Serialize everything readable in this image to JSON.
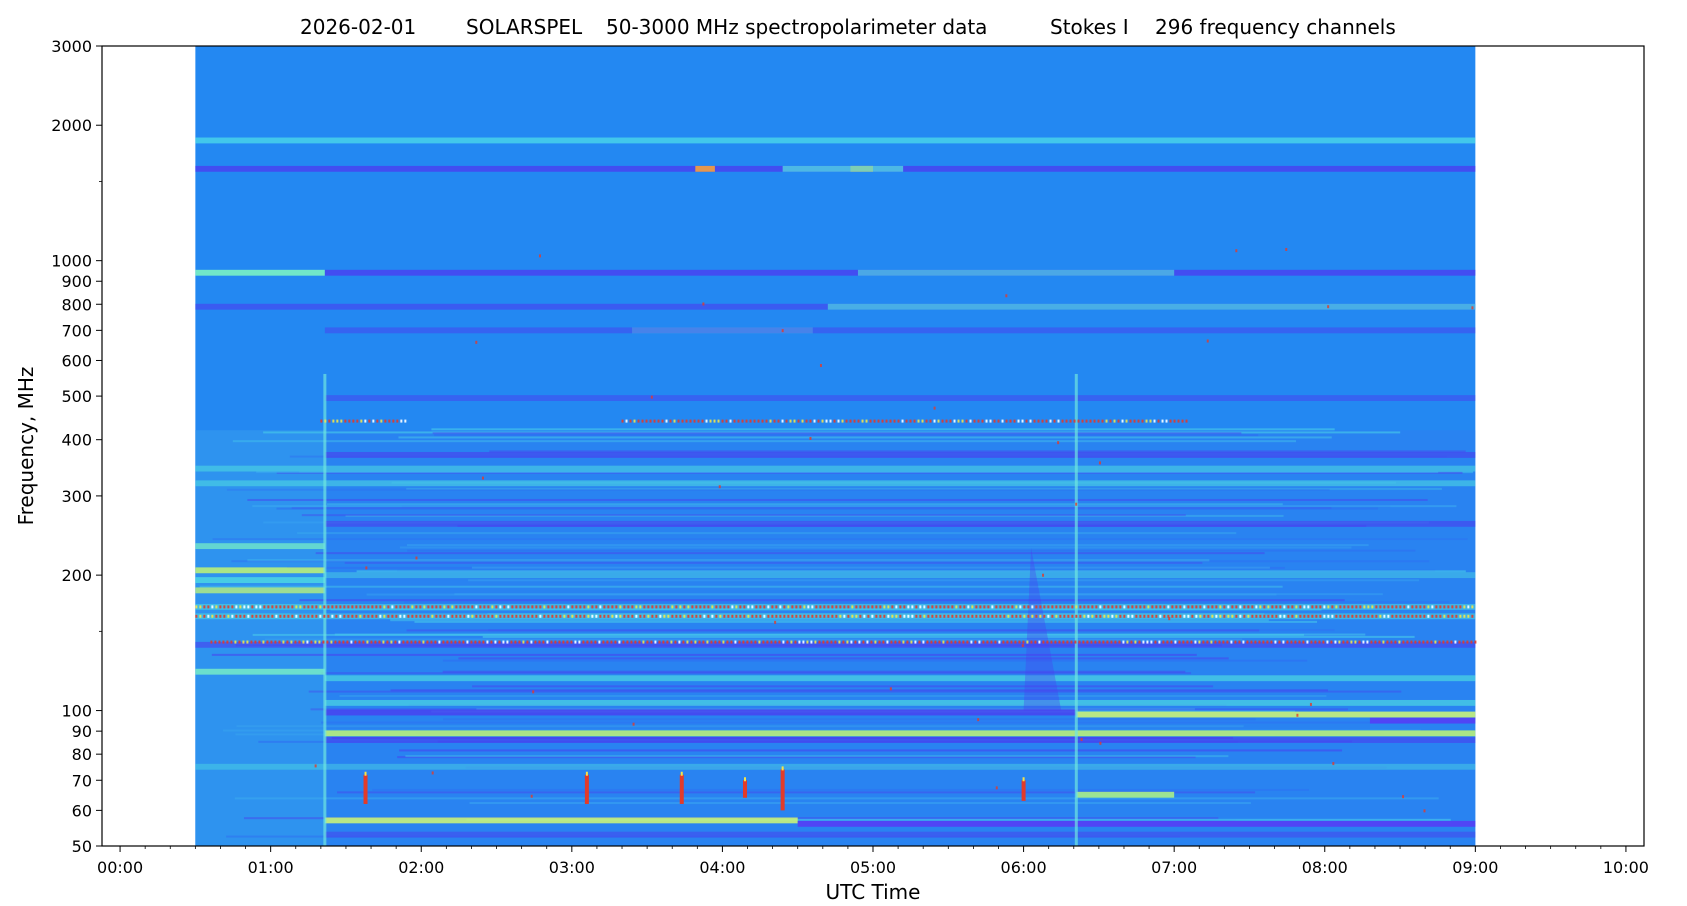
{
  "chart_data": {
    "type": "heatmap",
    "title": {
      "date": "2026-02-01",
      "instrument": "SOLARSPEL",
      "description": "50-3000 MHz spectropolarimeter data",
      "stokes": "Stokes I",
      "channels": "296 frequency channels"
    },
    "xlabel": "UTC Time",
    "ylabel": "Frequency, MHz",
    "x_ticks": [
      "00:00",
      "01:00",
      "02:00",
      "03:00",
      "04:00",
      "05:00",
      "06:00",
      "07:00",
      "08:00",
      "09:00",
      "10:00"
    ],
    "y_ticks": [
      "50",
      "60",
      "70",
      "80",
      "90",
      "100",
      "200",
      "300",
      "400",
      "500",
      "600",
      "700",
      "800",
      "900",
      "1000",
      "2000",
      "3000"
    ],
    "y_scale": "log",
    "xlim_hours": [
      -0.12,
      10.12
    ],
    "ylim_mhz": [
      50,
      3000
    ],
    "data_time_range_hours": [
      0.5,
      9.0
    ],
    "colormap": "rainbow (blue background, cyan/yellow enhancements, red spikes)",
    "background_color": "#2388f2",
    "cut_times_hours": [
      1.36,
      6.35
    ],
    "bands": [
      {
        "f": 1850,
        "c": "#50e2e8",
        "a": 0.7,
        "t0": 0.5,
        "t1": 9.0
      },
      {
        "f": 1600,
        "c": "#4a3ef0",
        "a": 0.8,
        "t0": 0.5,
        "t1": 9.0
      },
      {
        "f": 1600,
        "c": "#f6a03c",
        "a": 0.9,
        "t0": 3.82,
        "t1": 3.95
      },
      {
        "f": 1600,
        "c": "#f6a03c",
        "a": 0.9,
        "t0": 4.85,
        "t1": 5.0
      },
      {
        "f": 1600,
        "c": "#52e6e0",
        "a": 0.7,
        "t0": 4.4,
        "t1": 5.2
      },
      {
        "f": 940,
        "c": "#7af2c4",
        "a": 0.9,
        "t0": 0.5,
        "t1": 1.36
      },
      {
        "f": 940,
        "c": "#4a3ef0",
        "a": 0.8,
        "t0": 1.36,
        "t1": 9.0
      },
      {
        "f": 940,
        "c": "#52e6e0",
        "a": 0.6,
        "t0": 4.9,
        "t1": 7.0
      },
      {
        "f": 790,
        "c": "#4a3ef0",
        "a": 0.6,
        "t0": 0.5,
        "t1": 9.0
      },
      {
        "f": 790,
        "c": "#52e6e0",
        "a": 0.6,
        "t0": 4.7,
        "t1": 9.0
      },
      {
        "f": 700,
        "c": "#52e6e0",
        "a": 0.7,
        "t0": 3.4,
        "t1": 4.6
      },
      {
        "f": 700,
        "c": "#4a3ef0",
        "a": 0.5,
        "t0": 1.36,
        "t1": 9.0
      },
      {
        "f": 495,
        "c": "#4a3ef0",
        "a": 0.5,
        "t0": 1.36,
        "t1": 9.0
      },
      {
        "f": 370,
        "c": "#4a3ef0",
        "a": 0.6,
        "t0": 1.36,
        "t1": 9.0
      },
      {
        "f": 345,
        "c": "#52e6e0",
        "a": 0.5,
        "t0": 0.5,
        "t1": 9.0
      },
      {
        "f": 320,
        "c": "#52e6e0",
        "a": 0.5,
        "t0": 0.5,
        "t1": 9.0
      },
      {
        "f": 260,
        "c": "#4a3ef0",
        "a": 0.6,
        "t0": 1.36,
        "t1": 9.0
      },
      {
        "f": 232,
        "c": "#7af2c4",
        "a": 0.7,
        "t0": 0.5,
        "t1": 1.36
      },
      {
        "f": 205,
        "c": "#b8f07a",
        "a": 0.9,
        "t0": 0.5,
        "t1": 1.36
      },
      {
        "f": 195,
        "c": "#52e6e0",
        "a": 0.7,
        "t0": 0.5,
        "t1": 1.36
      },
      {
        "f": 185,
        "c": "#b8f07a",
        "a": 0.8,
        "t0": 0.5,
        "t1": 1.36
      },
      {
        "f": 200,
        "c": "#52e6e0",
        "a": 0.4,
        "t0": 1.36,
        "t1": 9.0
      },
      {
        "f": 170,
        "c": "#52e6e0",
        "a": 0.5,
        "t0": 0.5,
        "t1": 9.0
      },
      {
        "f": 162,
        "c": "#52e6e0",
        "a": 0.5,
        "t0": 0.5,
        "t1": 9.0
      },
      {
        "f": 140,
        "c": "#4a3ef0",
        "a": 0.6,
        "t0": 0.5,
        "t1": 9.0
      },
      {
        "f": 122,
        "c": "#7af2c4",
        "a": 0.8,
        "t0": 0.5,
        "t1": 1.36
      },
      {
        "f": 118,
        "c": "#52e6e0",
        "a": 0.6,
        "t0": 1.36,
        "t1": 9.0
      },
      {
        "f": 104,
        "c": "#52e6e0",
        "a": 0.6,
        "t0": 1.36,
        "t1": 9.0
      },
      {
        "f": 99,
        "c": "#4a3ef0",
        "a": 0.8,
        "t0": 1.36,
        "t1": 6.35
      },
      {
        "f": 98,
        "c": "#c8f27a",
        "a": 0.9,
        "t0": 6.35,
        "t1": 9.0
      },
      {
        "f": 95,
        "c": "#5a36f6",
        "a": 0.8,
        "t0": 8.3,
        "t1": 9.0
      },
      {
        "f": 89,
        "c": "#b8f07a",
        "a": 0.9,
        "t0": 1.36,
        "t1": 9.0
      },
      {
        "f": 86,
        "c": "#4a3ef0",
        "a": 0.6,
        "t0": 1.36,
        "t1": 9.0
      },
      {
        "f": 75,
        "c": "#52e6e0",
        "a": 0.4,
        "t0": 0.5,
        "t1": 9.0
      },
      {
        "f": 65,
        "c": "#a8ee88",
        "a": 0.9,
        "t0": 6.35,
        "t1": 7.0
      },
      {
        "f": 57,
        "c": "#c8f27a",
        "a": 0.9,
        "t0": 1.36,
        "t1": 4.5
      },
      {
        "f": 56,
        "c": "#5a36f6",
        "a": 0.8,
        "t0": 4.5,
        "t1": 9.0
      },
      {
        "f": 53,
        "c": "#4a3ef0",
        "a": 0.5,
        "t0": 1.36,
        "t1": 9.0
      }
    ],
    "dotted_lines": [
      {
        "f": 440,
        "t0": 1.33,
        "t1": 1.9
      },
      {
        "f": 440,
        "t0": 3.33,
        "t1": 7.1
      },
      {
        "f": 170,
        "t0": 0.5,
        "t1": 9.0
      },
      {
        "f": 162,
        "t0": 0.5,
        "t1": 9.0
      },
      {
        "f": 142,
        "t0": 0.6,
        "t1": 9.0
      }
    ],
    "bursts": [
      {
        "t": 1.63,
        "f0": 62,
        "f1": 72
      },
      {
        "t": 3.1,
        "f0": 62,
        "f1": 72
      },
      {
        "t": 3.73,
        "f0": 62,
        "f1": 72
      },
      {
        "t": 4.15,
        "f0": 64,
        "f1": 70
      },
      {
        "t": 4.4,
        "f0": 60,
        "f1": 74
      },
      {
        "t": 6.0,
        "f0": 63,
        "f1": 70
      }
    ]
  }
}
